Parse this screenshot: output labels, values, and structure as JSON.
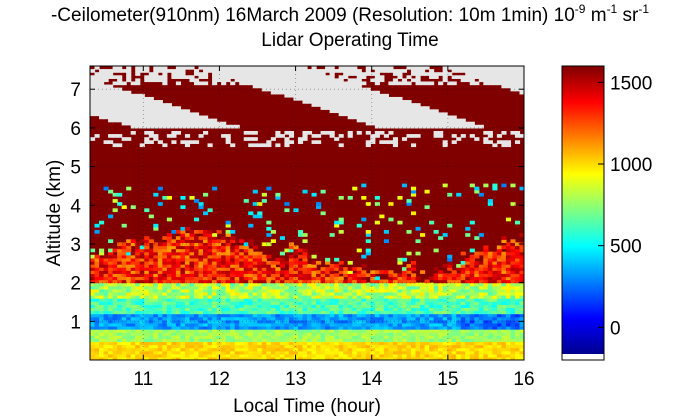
{
  "chart_data": {
    "type": "heatmap",
    "title": {
      "prefix": "-Ceilometer(910nm) 16March 2009 (Resolution: 10m 1min) 10",
      "exp1": "-9",
      "mid": " m",
      "exp2": "-1",
      "mid2": " sr",
      "exp3": "-1",
      "line2": "Lidar Operating Time"
    },
    "xlabel": "Local Time (hour)",
    "ylabel": "Altitude (km)",
    "xlim": [
      10.3,
      16
    ],
    "ylim": [
      0,
      7.6
    ],
    "xticks": [
      "11",
      "12",
      "13",
      "14",
      "15",
      "16"
    ],
    "yticks": [
      "1",
      "2",
      "3",
      "4",
      "5",
      "6",
      "7"
    ],
    "colorbar": {
      "range": [
        -200,
        1600
      ],
      "ticks": [
        "0",
        "500",
        "1000",
        "1500"
      ],
      "colormap": "jet",
      "colors": [
        "#00008f",
        "#0000ff",
        "#0080ff",
        "#00ffff",
        "#80ff80",
        "#ffff00",
        "#ff8000",
        "#ff0000",
        "#800000"
      ]
    },
    "missing_color": "#e6e6e6",
    "layers": [
      {
        "altitude_km": [
          0.0,
          0.5
        ],
        "value": 1100
      },
      {
        "altitude_km": [
          0.5,
          0.8
        ],
        "value": 700
      },
      {
        "altitude_km": [
          0.8,
          1.2
        ],
        "value": 250
      },
      {
        "altitude_km": [
          1.2,
          1.6
        ],
        "value": 600
      },
      {
        "altitude_km": [
          1.6,
          2.0
        ],
        "value": 800
      },
      {
        "altitude_km": [
          2.0,
          2.6
        ],
        "value": 1300
      },
      {
        "altitude_km": [
          2.6,
          4.5
        ],
        "value": 1600
      },
      {
        "altitude_km": [
          4.5,
          5.8
        ],
        "value": 1600
      },
      {
        "altitude_km": [
          5.8,
          7.6
        ],
        "value": "no data / intermittent"
      }
    ]
  }
}
